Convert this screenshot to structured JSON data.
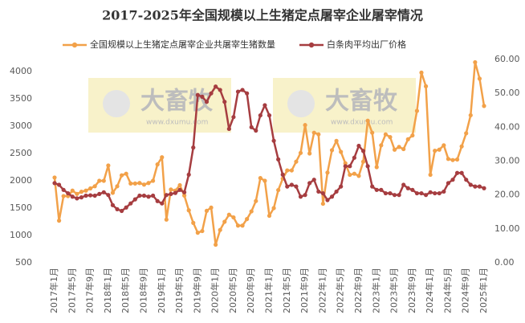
{
  "chart_data": {
    "type": "line",
    "title": "2017-2025年全国规模以上生猪定点屠宰企业屠宰情况",
    "watermark": {
      "text": "大畜牧",
      "url": "www.dxumu.com"
    },
    "categories": [
      "2017年1月",
      null,
      null,
      null,
      "2017年5月",
      null,
      null,
      null,
      "2017年9月",
      null,
      null,
      null,
      "2018年1月",
      null,
      null,
      null,
      "2018年5月",
      null,
      null,
      null,
      "2018年9月",
      null,
      null,
      null,
      "2019年1月",
      null,
      null,
      null,
      "2019年5月",
      null,
      null,
      null,
      "2019年9月",
      null,
      null,
      null,
      "2020年1月",
      null,
      null,
      null,
      "2020年5月",
      null,
      null,
      null,
      "2020年9月",
      null,
      null,
      null,
      "2021年1月",
      null,
      null,
      null,
      "2021年5月",
      null,
      null,
      null,
      "2021年9月",
      null,
      null,
      null,
      "2022年1月",
      null,
      null,
      null,
      "2022年5月",
      null,
      null,
      null,
      "2022年9月",
      null,
      null,
      null,
      "2023年1月",
      null,
      null,
      null,
      "2023年5月",
      null,
      null,
      null,
      "2023年9月",
      null,
      null,
      null,
      "2024年1月",
      null,
      null,
      null,
      "2024年5月",
      null,
      null,
      null,
      "2024年9月",
      null,
      null,
      null,
      "2025年1月"
    ],
    "series": [
      {
        "name": "全国规模以上生猪定点屠宰企业共屠宰生猪数量",
        "color": "#f2a149",
        "axis": "y",
        "values": [
          2060,
          1270,
          1720,
          1720,
          1820,
          1760,
          1800,
          1820,
          1860,
          1900,
          2000,
          2000,
          2280,
          1780,
          1900,
          2100,
          2130,
          1950,
          1950,
          1960,
          1930,
          1960,
          2000,
          2300,
          2430,
          1290,
          1840,
          1820,
          1920,
          1730,
          1460,
          1230,
          1050,
          1080,
          1450,
          1510,
          830,
          1100,
          1250,
          1380,
          1330,
          1180,
          1180,
          1300,
          1440,
          1630,
          2050,
          2000,
          1360,
          1500,
          1830,
          2040,
          2190,
          2190,
          2350,
          2510,
          3020,
          2500,
          2880,
          2850,
          1580,
          2150,
          2560,
          2730,
          2530,
          2320,
          2110,
          2130,
          2090,
          2350,
          3100,
          2880,
          2250,
          2650,
          2850,
          2800,
          2570,
          2620,
          2580,
          2760,
          2830,
          3280,
          3980,
          3730,
          2110,
          2550,
          2570,
          2650,
          2400,
          2380,
          2390,
          2630,
          2870,
          3200,
          4170,
          3870,
          3370
        ]
      },
      {
        "name": "白条肉平均出厂价格",
        "color": "#a63d40",
        "axis": "y2",
        "values": [
          23.5,
          23,
          21.5,
          20.5,
          19.5,
          19,
          19.3,
          19.8,
          19.9,
          19.8,
          20.3,
          20.8,
          20,
          17,
          15.8,
          15.3,
          16.3,
          17.5,
          18.7,
          19.8,
          19.8,
          19.5,
          19.8,
          18.2,
          17.5,
          20,
          20.3,
          20.6,
          21.5,
          20.8,
          26,
          34,
          49.5,
          49,
          47.5,
          50,
          52,
          51,
          47.5,
          39.5,
          43,
          50.5,
          51,
          50,
          40,
          39,
          43.5,
          46.5,
          43.5,
          36,
          30.5,
          26,
          22.5,
          23,
          22.5,
          19.5,
          20,
          23.5,
          24.5,
          21,
          20.5,
          18.5,
          19.5,
          21,
          22.5,
          28.5,
          28.5,
          31,
          34.5,
          33,
          28.5,
          22.5,
          21.5,
          21.5,
          20.5,
          20.5,
          20,
          20,
          23,
          22,
          21.5,
          20.5,
          20.5,
          20,
          20.8,
          20.5,
          20.5,
          21,
          23.5,
          24.5,
          26.5,
          26.5,
          24.5,
          23,
          22.5,
          22.5,
          22
        ]
      }
    ],
    "ylim": [
      500,
      4221
    ],
    "yticks": [
      500,
      1000,
      1500,
      2000,
      2500,
      3000,
      3500,
      4000
    ],
    "y2lim": [
      0,
      60
    ],
    "y2ticks": [
      {
        "value": 0,
        "label": "0.00"
      },
      {
        "value": 10,
        "label": "10.00"
      },
      {
        "value": 20,
        "label": "20.00"
      },
      {
        "value": 30,
        "label": "30.00"
      },
      {
        "value": 40,
        "label": "40.00"
      },
      {
        "value": 50,
        "label": "50.00"
      },
      {
        "value": 60,
        "label": "60.00"
      }
    ]
  }
}
